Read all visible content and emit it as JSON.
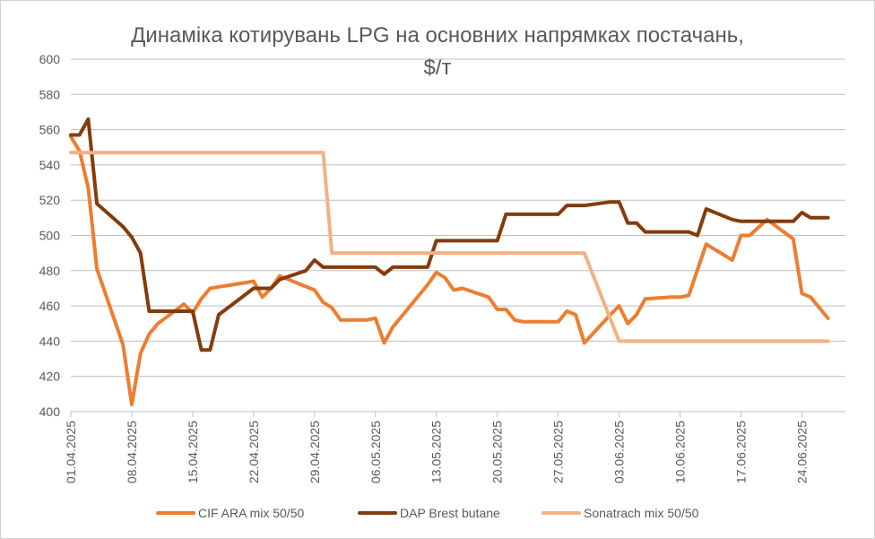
{
  "chart_data": {
    "type": "line",
    "title_lines": [
      "Динаміка котирувань LPG на основних напрямках постачань,",
      "$/т"
    ],
    "xlabel": "",
    "ylabel": "",
    "ylim": [
      400,
      600
    ],
    "y_ticks": [
      400,
      420,
      440,
      460,
      480,
      500,
      520,
      540,
      560,
      580,
      600
    ],
    "y_tick_labels": [
      "400",
      "420",
      "440",
      "460",
      "480",
      "500",
      "520",
      "540",
      "560",
      "580",
      "600"
    ],
    "x_range": [
      "2025-04-01",
      "2025-06-29"
    ],
    "x_ticks": [
      "2025-04-01",
      "2025-04-08",
      "2025-04-15",
      "2025-04-22",
      "2025-04-29",
      "2025-05-06",
      "2025-05-13",
      "2025-05-20",
      "2025-05-27",
      "2025-06-03",
      "2025-06-10",
      "2025-06-17",
      "2025-06-24"
    ],
    "x_tick_labels": [
      "01.04.2025",
      "08.04.2025",
      "15.04.2025",
      "22.04.2025",
      "29.04.2025",
      "06.05.2025",
      "13.05.2025",
      "20.05.2025",
      "27.05.2025",
      "03.06.2025",
      "10.06.2025",
      "17.06.2025",
      "24.06.2025"
    ],
    "grid": "horizontal",
    "legend_position": "bottom",
    "series": [
      {
        "name": "CIF ARA mix 50/50",
        "color": "#ED7D31",
        "points": [
          [
            "2025-04-01",
            556
          ],
          [
            "2025-04-02",
            548
          ],
          [
            "2025-04-03",
            527
          ],
          [
            "2025-04-04",
            481
          ],
          [
            "2025-04-07",
            438
          ],
          [
            "2025-04-08",
            404
          ],
          [
            "2025-04-09",
            433
          ],
          [
            "2025-04-10",
            444
          ],
          [
            "2025-04-11",
            450
          ],
          [
            "2025-04-14",
            461
          ],
          [
            "2025-04-15",
            456
          ],
          [
            "2025-04-16",
            464
          ],
          [
            "2025-04-17",
            470
          ],
          [
            "2025-04-22",
            474
          ],
          [
            "2025-04-23",
            465
          ],
          [
            "2025-04-24",
            470
          ],
          [
            "2025-04-25",
            477
          ],
          [
            "2025-04-28",
            471
          ],
          [
            "2025-04-29",
            469
          ],
          [
            "2025-04-30",
            462
          ],
          [
            "2025-05-01",
            459
          ],
          [
            "2025-05-02",
            452
          ],
          [
            "2025-05-05",
            452
          ],
          [
            "2025-05-06",
            453
          ],
          [
            "2025-05-07",
            439
          ],
          [
            "2025-05-08",
            448
          ],
          [
            "2025-05-09",
            454
          ],
          [
            "2025-05-12",
            472
          ],
          [
            "2025-05-13",
            479
          ],
          [
            "2025-05-14",
            476
          ],
          [
            "2025-05-15",
            469
          ],
          [
            "2025-05-16",
            470
          ],
          [
            "2025-05-19",
            465
          ],
          [
            "2025-05-20",
            458
          ],
          [
            "2025-05-21",
            458
          ],
          [
            "2025-05-22",
            452
          ],
          [
            "2025-05-23",
            451
          ],
          [
            "2025-05-26",
            451
          ],
          [
            "2025-05-27",
            451
          ],
          [
            "2025-05-28",
            457
          ],
          [
            "2025-05-29",
            455
          ],
          [
            "2025-05-30",
            439
          ],
          [
            "2025-06-02",
            455
          ],
          [
            "2025-06-03",
            460
          ],
          [
            "2025-06-04",
            450
          ],
          [
            "2025-06-05",
            455
          ],
          [
            "2025-06-06",
            464
          ],
          [
            "2025-06-09",
            465
          ],
          [
            "2025-06-10",
            465
          ],
          [
            "2025-06-11",
            466
          ],
          [
            "2025-06-13",
            495
          ],
          [
            "2025-06-16",
            486
          ],
          [
            "2025-06-17",
            500
          ],
          [
            "2025-06-18",
            500
          ],
          [
            "2025-06-20",
            509
          ],
          [
            "2025-06-23",
            498
          ],
          [
            "2025-06-24",
            467
          ],
          [
            "2025-06-25",
            465
          ],
          [
            "2025-06-27",
            453
          ]
        ]
      },
      {
        "name": "DAP Brest butane",
        "color": "#843C0C",
        "points": [
          [
            "2025-04-01",
            557
          ],
          [
            "2025-04-02",
            557
          ],
          [
            "2025-04-03",
            566
          ],
          [
            "2025-04-04",
            518
          ],
          [
            "2025-04-07",
            505
          ],
          [
            "2025-04-08",
            499
          ],
          [
            "2025-04-09",
            490
          ],
          [
            "2025-04-10",
            457
          ],
          [
            "2025-04-14",
            457
          ],
          [
            "2025-04-15",
            457
          ],
          [
            "2025-04-16",
            435
          ],
          [
            "2025-04-17",
            435
          ],
          [
            "2025-04-18",
            455
          ],
          [
            "2025-04-22",
            470
          ],
          [
            "2025-04-24",
            470
          ],
          [
            "2025-04-25",
            475
          ],
          [
            "2025-04-28",
            480
          ],
          [
            "2025-04-29",
            486
          ],
          [
            "2025-04-30",
            482
          ],
          [
            "2025-05-06",
            482
          ],
          [
            "2025-05-07",
            478
          ],
          [
            "2025-05-08",
            482
          ],
          [
            "2025-05-12",
            482
          ],
          [
            "2025-05-13",
            497
          ],
          [
            "2025-05-19",
            497
          ],
          [
            "2025-05-20",
            497
          ],
          [
            "2025-05-21",
            512
          ],
          [
            "2025-05-27",
            512
          ],
          [
            "2025-05-28",
            517
          ],
          [
            "2025-05-30",
            517
          ],
          [
            "2025-06-02",
            519
          ],
          [
            "2025-06-03",
            519
          ],
          [
            "2025-06-04",
            507
          ],
          [
            "2025-06-05",
            507
          ],
          [
            "2025-06-06",
            502
          ],
          [
            "2025-06-11",
            502
          ],
          [
            "2025-06-12",
            500
          ],
          [
            "2025-06-13",
            515
          ],
          [
            "2025-06-16",
            509
          ],
          [
            "2025-06-17",
            508
          ],
          [
            "2025-06-23",
            508
          ],
          [
            "2025-06-24",
            513
          ],
          [
            "2025-06-25",
            510
          ],
          [
            "2025-06-27",
            510
          ]
        ]
      },
      {
        "name": "Sonatrach mix 50/50",
        "color": "#F4B183",
        "points": [
          [
            "2025-04-01",
            547
          ],
          [
            "2025-04-30",
            547
          ],
          [
            "2025-05-01",
            490
          ],
          [
            "2025-05-30",
            490
          ],
          [
            "2025-06-03",
            440
          ],
          [
            "2025-06-27",
            440
          ]
        ]
      }
    ]
  }
}
